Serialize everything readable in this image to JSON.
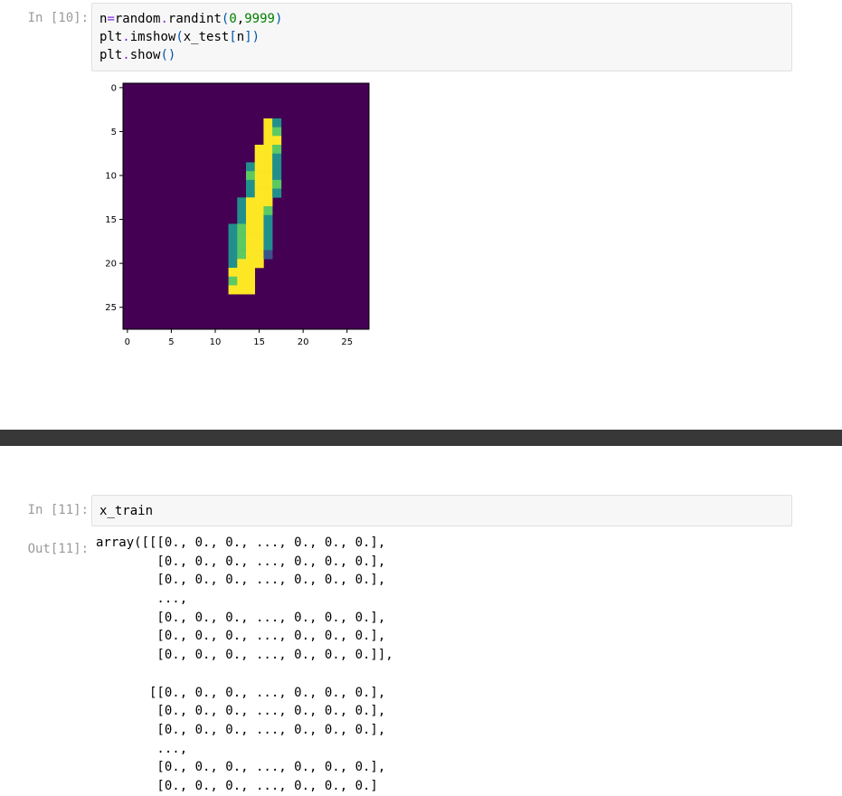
{
  "cells": [
    {
      "prompt": "In [10]:",
      "code": [
        [
          {
            "t": "n",
            "k": "var"
          },
          {
            "t": "=",
            "k": "op"
          },
          {
            "t": "random",
            "k": "var"
          },
          {
            "t": ".",
            "k": "op"
          },
          {
            "t": "randint",
            "k": "var"
          },
          {
            "t": "(",
            "k": "paren"
          },
          {
            "t": "0",
            "k": "num"
          },
          {
            "t": ",",
            "k": "punct"
          },
          {
            "t": "9999",
            "k": "num"
          },
          {
            "t": ")",
            "k": "paren"
          }
        ],
        [
          {
            "t": "plt",
            "k": "var"
          },
          {
            "t": ".",
            "k": "op"
          },
          {
            "t": "imshow",
            "k": "var"
          },
          {
            "t": "(",
            "k": "paren"
          },
          {
            "t": "x_test",
            "k": "var"
          },
          {
            "t": "[",
            "k": "bracket"
          },
          {
            "t": "n",
            "k": "var"
          },
          {
            "t": "]",
            "k": "bracket"
          },
          {
            "t": ")",
            "k": "paren"
          }
        ],
        [
          {
            "t": "plt",
            "k": "var"
          },
          {
            "t": ".",
            "k": "op"
          },
          {
            "t": "show",
            "k": "var"
          },
          {
            "t": "()",
            "k": "paren"
          }
        ]
      ]
    },
    {
      "prompt": "In [11]:",
      "out_prompt": "Out[11]:",
      "code": [
        [
          {
            "t": "x_train",
            "k": "var"
          }
        ]
      ],
      "output_lines": [
        "array([[[0., 0., 0., ..., 0., 0., 0.],",
        "        [0., 0., 0., ..., 0., 0., 0.],",
        "        [0., 0., 0., ..., 0., 0., 0.],",
        "        ...,",
        "        [0., 0., 0., ..., 0., 0., 0.],",
        "        [0., 0., 0., ..., 0., 0., 0.],",
        "        [0., 0., 0., ..., 0., 0., 0.]],",
        "",
        "       [[0., 0., 0., ..., 0., 0., 0.],",
        "        [0., 0., 0., ..., 0., 0., 0.],",
        "        [0., 0., 0., ..., 0., 0., 0.],",
        "        ...,",
        "        [0., 0., 0., ..., 0., 0., 0.],",
        "        [0., 0., 0., ..., 0., 0., 0.]"
      ]
    }
  ],
  "chart_data": {
    "type": "heatmap",
    "title": "",
    "xlabel": "",
    "ylabel": "",
    "shape": [
      28,
      28
    ],
    "x_ticks": [
      0,
      5,
      10,
      15,
      20,
      25
    ],
    "y_ticks": [
      0,
      5,
      10,
      15,
      20,
      25
    ],
    "colormap": "viridis",
    "background_color": "#440154",
    "level_colors": {
      "1": "#3b528b",
      "2": "#21908d",
      "3": "#5dc962",
      "4": "#fde725"
    },
    "cells": [
      [
        4,
        16,
        4
      ],
      [
        4,
        17,
        2
      ],
      [
        5,
        16,
        4
      ],
      [
        5,
        17,
        3
      ],
      [
        6,
        16,
        4
      ],
      [
        6,
        17,
        4
      ],
      [
        7,
        15,
        4
      ],
      [
        7,
        16,
        4
      ],
      [
        7,
        17,
        3
      ],
      [
        8,
        15,
        4
      ],
      [
        8,
        16,
        4
      ],
      [
        8,
        17,
        2
      ],
      [
        9,
        14,
        2
      ],
      [
        9,
        15,
        4
      ],
      [
        9,
        16,
        4
      ],
      [
        9,
        17,
        2
      ],
      [
        10,
        14,
        3
      ],
      [
        10,
        15,
        4
      ],
      [
        10,
        16,
        4
      ],
      [
        10,
        17,
        2
      ],
      [
        11,
        14,
        2
      ],
      [
        11,
        15,
        4
      ],
      [
        11,
        16,
        4
      ],
      [
        11,
        17,
        3
      ],
      [
        12,
        14,
        2
      ],
      [
        12,
        15,
        4
      ],
      [
        12,
        16,
        4
      ],
      [
        12,
        17,
        2
      ],
      [
        13,
        13,
        2
      ],
      [
        13,
        14,
        4
      ],
      [
        13,
        15,
        4
      ],
      [
        13,
        16,
        4
      ],
      [
        14,
        13,
        2
      ],
      [
        14,
        14,
        4
      ],
      [
        14,
        15,
        4
      ],
      [
        14,
        16,
        3
      ],
      [
        15,
        13,
        2
      ],
      [
        15,
        14,
        4
      ],
      [
        15,
        15,
        4
      ],
      [
        15,
        16,
        2
      ],
      [
        16,
        12,
        2
      ],
      [
        16,
        13,
        3
      ],
      [
        16,
        14,
        4
      ],
      [
        16,
        15,
        4
      ],
      [
        16,
        16,
        2
      ],
      [
        17,
        12,
        2
      ],
      [
        17,
        13,
        3
      ],
      [
        17,
        14,
        4
      ],
      [
        17,
        15,
        4
      ],
      [
        17,
        16,
        2
      ],
      [
        18,
        12,
        2
      ],
      [
        18,
        13,
        3
      ],
      [
        18,
        14,
        4
      ],
      [
        18,
        15,
        4
      ],
      [
        18,
        16,
        2
      ],
      [
        19,
        12,
        2
      ],
      [
        19,
        13,
        3
      ],
      [
        19,
        14,
        4
      ],
      [
        19,
        15,
        4
      ],
      [
        19,
        16,
        1
      ],
      [
        20,
        12,
        2
      ],
      [
        20,
        13,
        4
      ],
      [
        20,
        14,
        4
      ],
      [
        20,
        15,
        4
      ],
      [
        21,
        12,
        4
      ],
      [
        21,
        13,
        4
      ],
      [
        21,
        14,
        4
      ],
      [
        22,
        12,
        3
      ],
      [
        22,
        13,
        4
      ],
      [
        22,
        14,
        4
      ],
      [
        23,
        12,
        4
      ],
      [
        23,
        13,
        4
      ],
      [
        23,
        14,
        4
      ]
    ]
  }
}
